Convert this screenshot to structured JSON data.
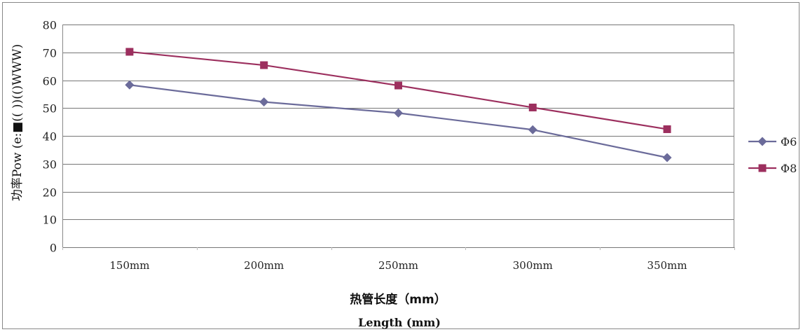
{
  "chart_data": {
    "type": "line",
    "categories": [
      "150mm",
      "200mm",
      "250mm",
      "300mm",
      "350mm"
    ],
    "series": [
      {
        "name": "Φ6",
        "values": [
          58.3,
          52.2,
          48.2,
          42.2,
          32.2
        ],
        "color": "#6b6b9a",
        "marker": "diamond"
      },
      {
        "name": "Φ8",
        "values": [
          70.2,
          65.4,
          58.1,
          50.2,
          42.4
        ],
        "color": "#9c2f5e",
        "marker": "square"
      }
    ],
    "xlabel": "热管长度（mm）",
    "xlabel_secondary": "Length (mm)",
    "ylabel": "功率Pow (e:■((   ))(()WWW)",
    "ylim": [
      0,
      80
    ],
    "yticks": [
      0,
      10,
      20,
      30,
      40,
      50,
      60,
      70,
      80
    ],
    "grid": true,
    "legend_position": "right",
    "frame_color": "#888888",
    "grid_color": "#777777"
  }
}
